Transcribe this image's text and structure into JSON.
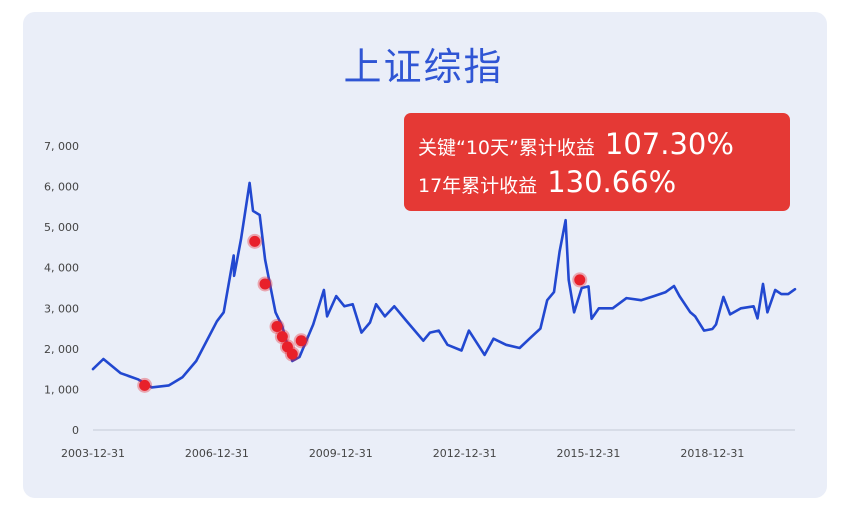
{
  "chart_data": {
    "type": "line",
    "title": "上证综指",
    "xlabel": "",
    "ylabel": "",
    "ylim": [
      0,
      7000
    ],
    "yticks": [
      0,
      1000,
      2000,
      3000,
      4000,
      5000,
      6000,
      7000
    ],
    "ytick_labels": [
      "0",
      "1, 000",
      "2, 000",
      "3, 000",
      "4, 000",
      "5, 000",
      "6, 000",
      "7, 000"
    ],
    "xlim": [
      "2003-12-31",
      "2020-12-31"
    ],
    "xtick_labels": [
      "2003-12-31",
      "2006-12-31",
      "2009-12-31",
      "2012-12-31",
      "2015-12-31",
      "2018-12-31"
    ],
    "grid": false,
    "series": [
      {
        "color": "#2248d0",
        "x": [
          "2003-12-31",
          "2004-04-01",
          "2004-09-01",
          "2005-01-31",
          "2005-06-01",
          "2005-11-01",
          "2006-03-01",
          "2006-07-01",
          "2006-12-31",
          "2007-03-01",
          "2007-05-29",
          "2007-06-01",
          "2007-08-01",
          "2007-10-16",
          "2007-11-15",
          "2008-01-14",
          "2008-03-01",
          "2008-04-20",
          "2008-06-01",
          "2008-08-01",
          "2008-09-15",
          "2008-10-28",
          "2008-12-31",
          "2009-03-01",
          "2009-05-01",
          "2009-08-04",
          "2009-09-01",
          "2009-11-20",
          "2010-02-01",
          "2010-04-15",
          "2010-07-02",
          "2010-09-15",
          "2010-11-08",
          "2011-01-25",
          "2011-04-18",
          "2011-08-01",
          "2011-12-31",
          "2012-02-28",
          "2012-05-15",
          "2012-08-01",
          "2012-12-03",
          "2013-02-06",
          "2013-06-25",
          "2013-09-12",
          "2014-01-01",
          "2014-05-01",
          "2014-08-15",
          "2014-11-01",
          "2014-12-31",
          "2015-03-01",
          "2015-04-20",
          "2015-06-12",
          "2015-07-09",
          "2015-08-26",
          "2015-11-01",
          "2015-12-31",
          "2016-01-28",
          "2016-04-01",
          "2016-08-01",
          "2016-12-01",
          "2017-04-10",
          "2017-08-01",
          "2017-11-13",
          "2018-01-26",
          "2018-03-15",
          "2018-06-19",
          "2018-08-01",
          "2018-10-18",
          "2018-12-31",
          "2019-02-01",
          "2019-04-08",
          "2019-06-06",
          "2019-09-10",
          "2019-12-31",
          "2020-02-03",
          "2020-03-23",
          "2020-05-01",
          "2020-07-09",
          "2020-09-01",
          "2020-11-01",
          "2020-12-31"
        ],
        "values": [
          1500,
          1750,
          1400,
          1250,
          1050,
          1100,
          1300,
          1700,
          2680,
          2900,
          4300,
          3800,
          4700,
          6090,
          5400,
          5300,
          4200,
          3500,
          2900,
          2550,
          2100,
          1700,
          1800,
          2200,
          2600,
          3450,
          2800,
          3300,
          3050,
          3100,
          2400,
          2650,
          3100,
          2800,
          3050,
          2700,
          2200,
          2400,
          2450,
          2100,
          1960,
          2450,
          1850,
          2250,
          2100,
          2020,
          2300,
          2500,
          3200,
          3400,
          4400,
          5170,
          3700,
          2900,
          3500,
          3540,
          2740,
          3000,
          3000,
          3250,
          3200,
          3300,
          3400,
          3550,
          3300,
          2900,
          2800,
          2450,
          2490,
          2600,
          3280,
          2850,
          3000,
          3050,
          2750,
          3600,
          2900,
          3450,
          3350,
          3350,
          3470
        ]
      }
    ],
    "markers": {
      "color": "#e8202a",
      "x": [
        "2005-04-01",
        "2007-12-01",
        "2008-03-01",
        "2008-06-15",
        "2008-08-01",
        "2008-09-15",
        "2008-10-28",
        "2009-01-15",
        "2015-10-15"
      ],
      "values": [
        1100,
        4650,
        3600,
        2550,
        2300,
        2050,
        1870,
        2200,
        3700
      ]
    },
    "callout": {
      "line1_label": "关键“10天”累计收益",
      "line1_value": "107.30%",
      "line2_label": "17年累计收益",
      "line2_value": "130.66%",
      "background": "#e53935"
    }
  }
}
